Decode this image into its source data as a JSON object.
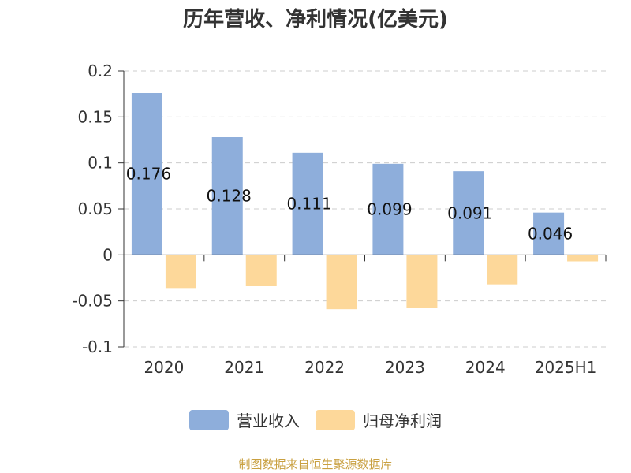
{
  "chart_data": {
    "type": "bar",
    "title": "历年营收、净利情况(亿美元)",
    "categories": [
      "2020",
      "2021",
      "2022",
      "2023",
      "2024",
      "2025H1"
    ],
    "series": [
      {
        "name": "营业收入",
        "color": "#8eaedb",
        "values": [
          0.176,
          0.128,
          0.111,
          0.099,
          0.091,
          0.046
        ],
        "labels": [
          "0.176",
          "0.128",
          "0.111",
          "0.099",
          "0.091",
          "0.046"
        ]
      },
      {
        "name": "归母净利润",
        "color": "#fdd89a",
        "values": [
          -0.036,
          -0.034,
          -0.059,
          -0.058,
          -0.032,
          -0.007
        ]
      }
    ],
    "yticks": [
      "0.2",
      "0.15",
      "0.1",
      "0.05",
      "0",
      "-0.05",
      "-0.1"
    ],
    "ylim": [
      -0.1,
      0.2
    ],
    "grid": true,
    "legend_position": "bottom"
  },
  "source_note": "制图数据来自恒生聚源数据库"
}
